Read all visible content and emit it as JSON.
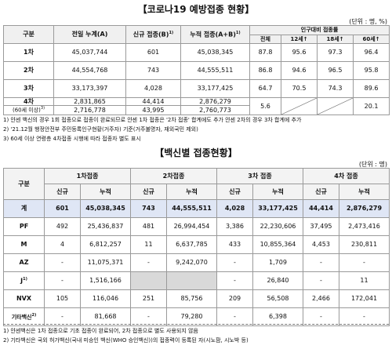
{
  "t1": {
    "title": "【코로나19 예방접종 현황】",
    "unit": "(단위 : 명, %)",
    "headers": {
      "gubun": "구분",
      "prev_total": "전일 누계(A)",
      "new": "신규 접종(B)",
      "new_sup": "1)",
      "total": "누적 접종(A+B)",
      "total_sup": "1)",
      "ratio_group": "인구대비 접종률",
      "all": "전체",
      "age12": "12세↑",
      "age18": "18세↑",
      "age60": "60세↑"
    },
    "rows": [
      {
        "label": "1차",
        "prev": "45,037,744",
        "new": "601",
        "total": "45,038,345",
        "all": "87.8",
        "a12": "95.6",
        "a18": "97.3",
        "a60": "96.4"
      },
      {
        "label": "2차",
        "prev": "44,554,768",
        "new": "743",
        "total": "44,555,511",
        "all": "86.8",
        "a12": "94.6",
        "a18": "96.5",
        "a60": "95.8"
      },
      {
        "label": "3차",
        "prev": "33,173,397",
        "new": "4,028",
        "total": "33,177,425",
        "all": "64.7",
        "a12": "70.5",
        "a18": "74.3",
        "a60": "89.6"
      },
      {
        "label": "4차",
        "prev": "2,831,865",
        "new": "44,414",
        "total": "2,876,279",
        "all": "5.6",
        "a12": "",
        "a18": "",
        "a60": "20.1"
      }
    ],
    "sub_row": {
      "label": "(60세 이상)",
      "sup": "3)",
      "prev": "2,716,778",
      "new": "43,995",
      "total": "2,760,773"
    },
    "notes": [
      "1) 얀센 백신의 경우 1회 접종으로 접종이 완료되므로 얀센 1차 접종은 '2차 접종' 합계에도 추가 얀센 2차의 경우 3차 합계에 추가",
      "2) '21.12월 행정안전부 주민등록인구현황(거주자) 기준(거주불명자, 재외국민 제외)",
      "3) 60세 이상 연령층 4차접종 시행에 따라 접종자 별도 표시"
    ]
  },
  "t2": {
    "title": "【백신별 접종현황】",
    "unit": "(단위 : 명)",
    "headers": {
      "gubun": "구분",
      "d1": "1차접종",
      "d2": "2차접종",
      "d3": "3차 접종",
      "d4": "4차 접종",
      "new": "신규",
      "cum": "누적"
    },
    "total_row": {
      "label": "계",
      "v": [
        "601",
        "45,038,345",
        "743",
        "44,555,511",
        "4,028",
        "33,177,425",
        "44,414",
        "2,876,279"
      ]
    },
    "rows": [
      {
        "label": "PF",
        "sup": "",
        "v": [
          "492",
          "25,436,837",
          "481",
          "26,994,454",
          "3,386",
          "22,230,606",
          "37,495",
          "2,473,416"
        ]
      },
      {
        "label": "M",
        "sup": "",
        "v": [
          "4",
          "6,812,257",
          "11",
          "6,637,785",
          "433",
          "10,855,364",
          "4,453",
          "230,811"
        ]
      },
      {
        "label": "AZ",
        "sup": "",
        "v": [
          "-",
          "11,075,371",
          "-",
          "9,242,070",
          "-",
          "1,709",
          "-",
          "-"
        ]
      },
      {
        "label": "J",
        "sup": "1)",
        "v": [
          "-",
          "1,516,166",
          "",
          "",
          "-",
          "26,840",
          "-",
          "11"
        ]
      },
      {
        "label": "NVX",
        "sup": "",
        "v": [
          "105",
          "116,046",
          "251",
          "85,756",
          "209",
          "56,508",
          "2,466",
          "172,041"
        ]
      },
      {
        "label": "기타백신",
        "sup": "2)",
        "v": [
          "-",
          "81,668",
          "-",
          "79,280",
          "-",
          "6,398",
          "-",
          "-"
        ]
      }
    ],
    "notes": [
      "1) 얀센백신은 1차 접종으로 기초 접종이 완료되어, 2차 접종으로 별도 사용되지 않음",
      "2) 기타백신은 국외 허가백신(국내 미승인 백신(WHO 승인백신))의 접종력이 등록된 자(시노팜, 시노박 등)"
    ]
  }
}
